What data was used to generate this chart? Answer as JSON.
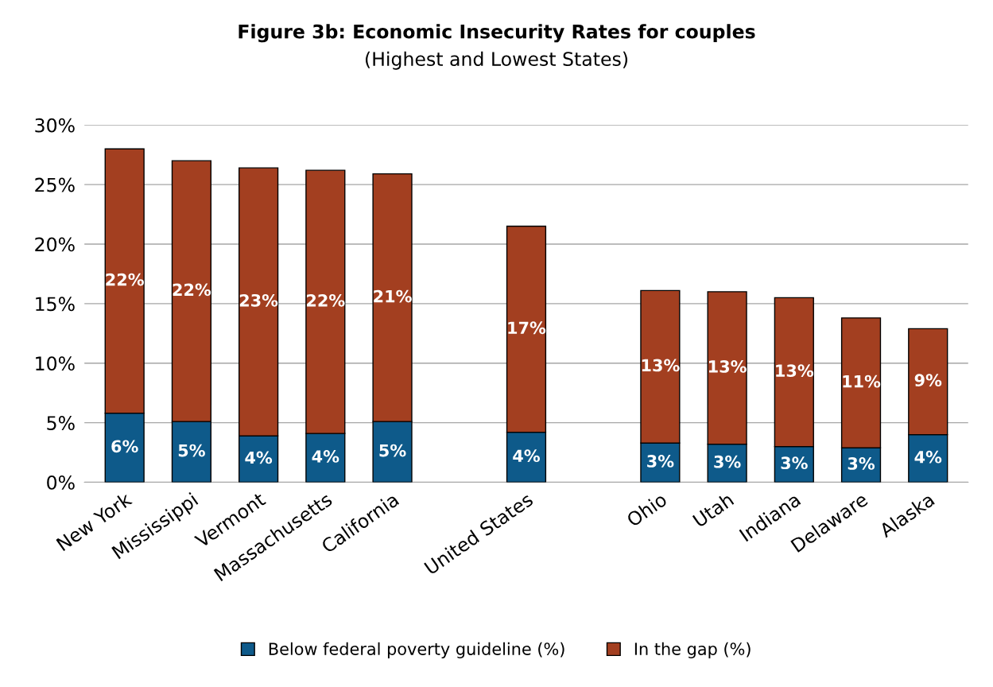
{
  "chart_data": {
    "type": "bar",
    "title": "Figure 3b: Economic Insecurity Rates for couples",
    "subtitle": "(Highest and Lowest States)",
    "categories": [
      "New York",
      "Mississippi",
      "Vermont",
      "Massachusetts",
      "California",
      null,
      "United States",
      null,
      "Ohio",
      "Utah",
      "Indiana",
      "Delaware",
      "Alaska"
    ],
    "stacked": true,
    "series": [
      {
        "name": "Below federal poverty guideline (%)",
        "color": "#0e5a8a",
        "values": [
          5.8,
          5.1,
          3.9,
          4.1,
          5.1,
          null,
          4.2,
          null,
          3.3,
          3.2,
          3.0,
          2.9,
          4.0
        ],
        "value_labels": [
          "6%",
          "5%",
          "4%",
          "4%",
          "5%",
          null,
          "4%",
          null,
          "3%",
          "3%",
          "3%",
          "3%",
          "4%"
        ]
      },
      {
        "name": "In the gap (%)",
        "color": "#a33f20",
        "values": [
          22.2,
          21.9,
          22.5,
          22.1,
          20.8,
          null,
          17.3,
          null,
          12.8,
          12.8,
          12.5,
          10.9,
          8.9
        ],
        "value_labels": [
          "22%",
          "22%",
          "23%",
          "22%",
          "21%",
          null,
          "17%",
          null,
          "13%",
          "13%",
          "13%",
          "11%",
          "9%"
        ]
      }
    ],
    "ylim": [
      0,
      30
    ],
    "yticks": [
      {
        "value": 0,
        "label": "0%"
      },
      {
        "value": 5,
        "label": "5%"
      },
      {
        "value": 10,
        "label": "10%"
      },
      {
        "value": 15,
        "label": "15%"
      },
      {
        "value": 20,
        "label": "20%"
      },
      {
        "value": 25,
        "label": "25%"
      },
      {
        "value": 30,
        "label": "30%"
      }
    ],
    "grid": "y",
    "legend": "bottom"
  }
}
